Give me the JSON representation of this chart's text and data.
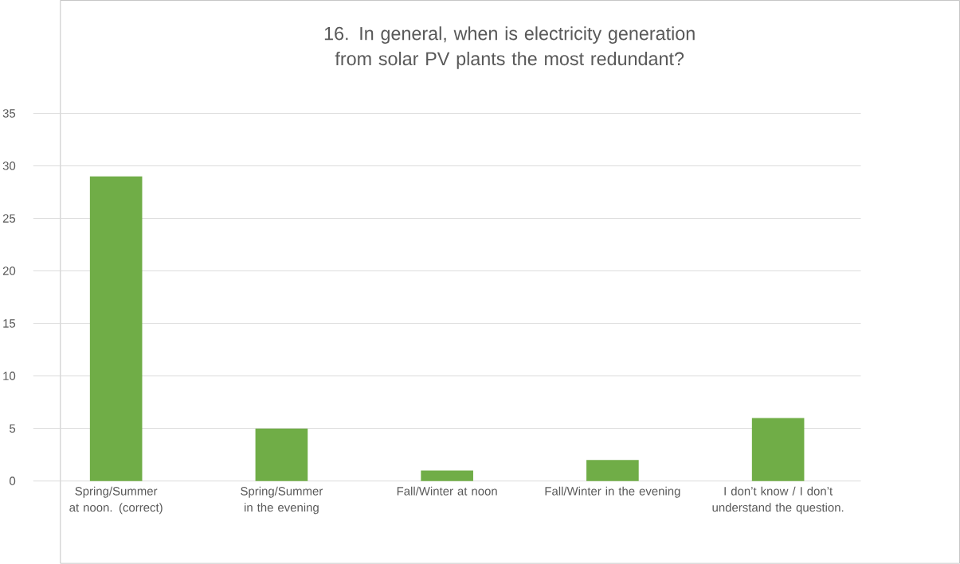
{
  "chart_data": {
    "type": "bar",
    "title": "16. In general, when is electricity generation from solar PV plants the most redundant?",
    "categories": [
      "Spring/Summer at noon. (correct)",
      "Spring/Summer in the evening",
      "Fall/Winter at noon",
      "Fall/Winter in the evening",
      "I don’t know / I don’t understand the question."
    ],
    "values": [
      29,
      5,
      1,
      2,
      6
    ],
    "color": "#70ad47",
    "ylim": [
      0,
      35
    ],
    "yticks": [
      0,
      5,
      10,
      15,
      20,
      25,
      30,
      35
    ],
    "grid": "y"
  }
}
